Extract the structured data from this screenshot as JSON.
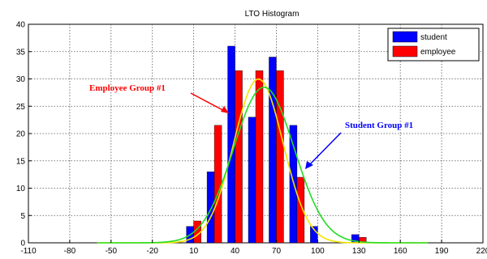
{
  "chart_data": {
    "type": "bar",
    "title": "LTO Histogram",
    "xlabel": "",
    "ylabel": "",
    "xlim": [
      -110,
      220
    ],
    "ylim": [
      0,
      40
    ],
    "x_ticks": [
      -110,
      -80,
      -50,
      -20,
      10,
      40,
      70,
      100,
      130,
      160,
      190,
      220
    ],
    "y_ticks": [
      0,
      5,
      10,
      15,
      20,
      25,
      30,
      35,
      40
    ],
    "grid": true,
    "legend_position": "top-right",
    "categories": [
      10,
      25,
      40,
      55,
      70,
      85,
      100,
      115,
      130
    ],
    "series": [
      {
        "name": "student",
        "color": "#0000ff",
        "values": [
          3,
          13,
          36,
          23,
          34,
          21.5,
          3,
          0,
          1.5
        ]
      },
      {
        "name": "employee",
        "color": "#ff0000",
        "values": [
          4,
          21.5,
          31.5,
          31.5,
          31.5,
          12,
          0,
          0,
          1
        ]
      }
    ],
    "curves": [
      {
        "label": "Employee Group #1",
        "color": "#f2e400",
        "mean": 57,
        "peak": 30,
        "sd": 18
      },
      {
        "label": "Student Group #1",
        "color": "#22dd22",
        "mean": 61,
        "peak": 28.5,
        "sd": 22
      }
    ],
    "annotations": [
      {
        "text": "Employee Group #1",
        "color": "#ff0000"
      },
      {
        "text": "Student Group #1",
        "color": "#0000ff"
      }
    ]
  }
}
